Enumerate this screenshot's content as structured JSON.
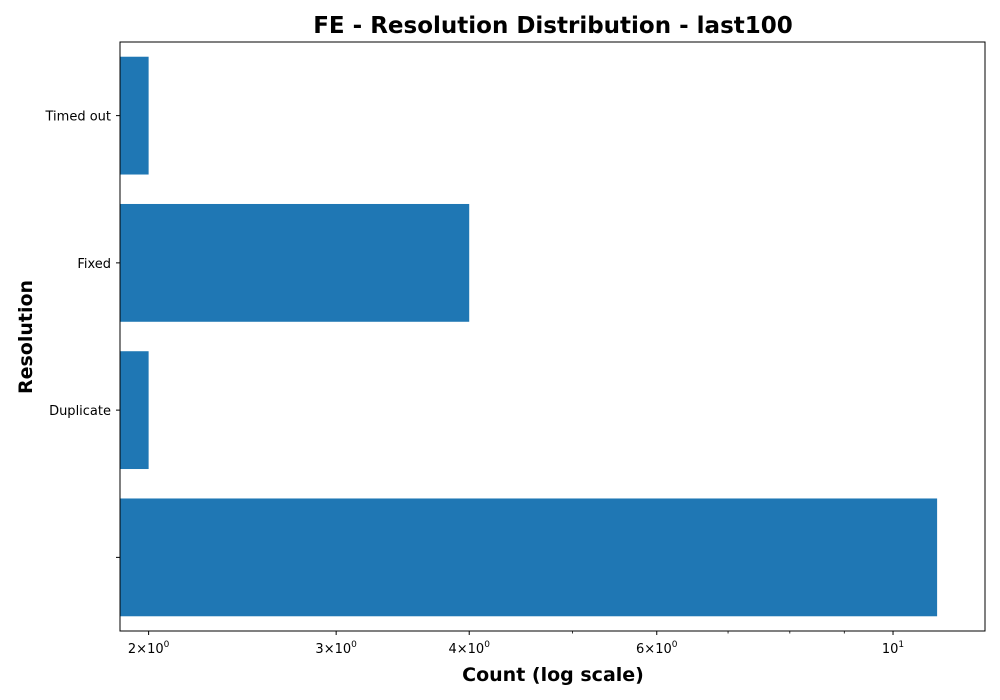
{
  "chart_data": {
    "type": "bar",
    "orientation": "horizontal",
    "title": "FE - Resolution Distribution - last100",
    "xlabel": "Count (log scale)",
    "ylabel": "Resolution",
    "x_scale": "log",
    "xlim": [
      1.88,
      12.2
    ],
    "categories": [
      "",
      "Duplicate",
      "Fixed",
      "Timed out"
    ],
    "values": [
      11,
      2,
      4,
      2
    ],
    "x_major_ticks": [
      {
        "value": 2,
        "mantissa": "2",
        "base": "10",
        "exp": "0"
      },
      {
        "value": 3,
        "mantissa": "3",
        "base": "10",
        "exp": "0"
      },
      {
        "value": 4,
        "mantissa": "4",
        "base": "10",
        "exp": "0"
      },
      {
        "value": 6,
        "mantissa": "6",
        "base": "10",
        "exp": "0"
      },
      {
        "value": 10,
        "mantissa": "",
        "base": "10",
        "exp": "1"
      }
    ],
    "x_minor_ticks": [
      5,
      7,
      8,
      9
    ],
    "bar_color": "#1f77b4",
    "grid": false,
    "legend": false
  }
}
